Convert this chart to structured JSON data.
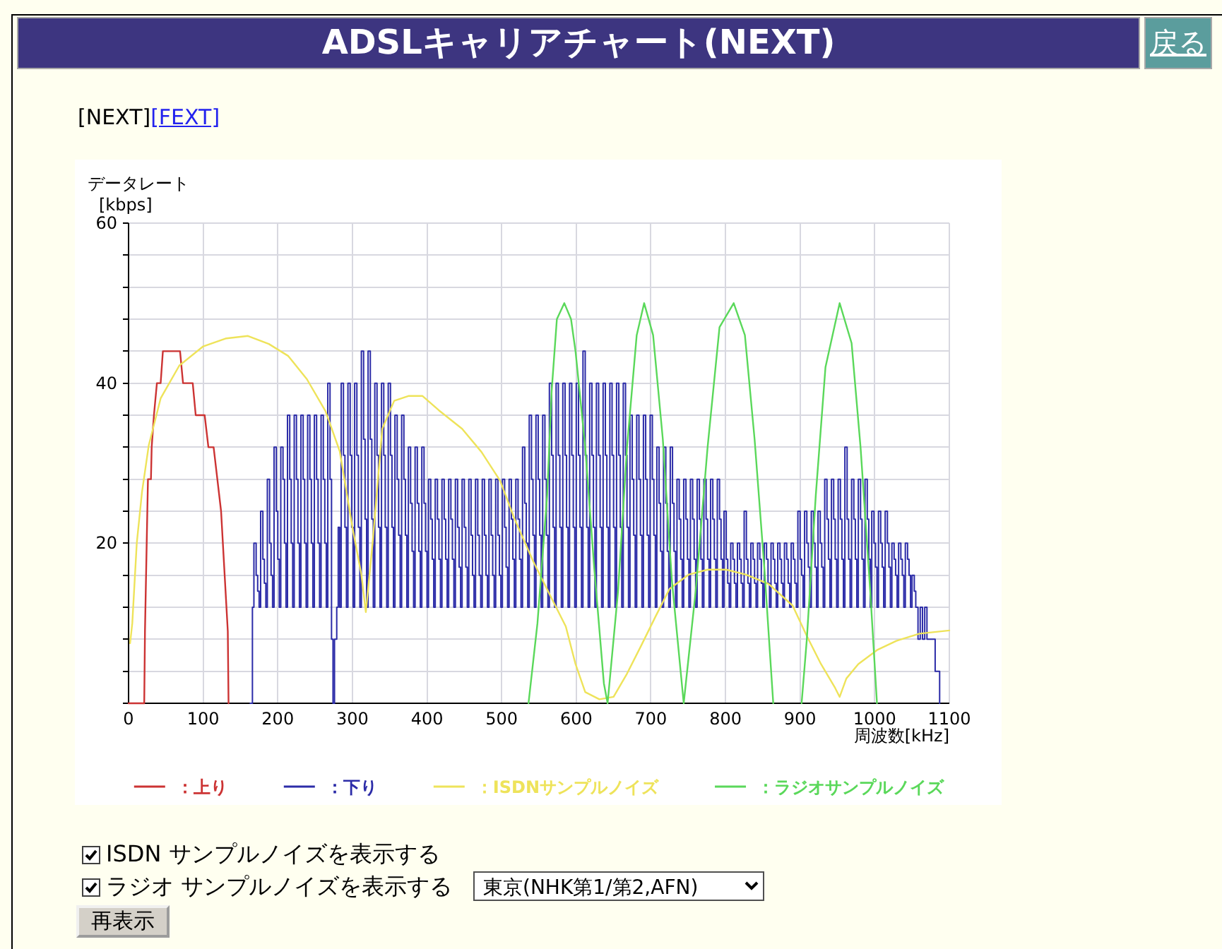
{
  "chart_data": {
    "type": "line",
    "title": "ADSLキャリアチャート(NEXT)",
    "xlabel": "周波数[kHz]",
    "ylabel": "データレート\n[kbps]",
    "xlim": [
      0,
      1100
    ],
    "xticks": [
      0,
      100,
      200,
      300,
      400,
      500,
      600,
      700,
      800,
      900,
      1000,
      1100
    ],
    "ylim": [
      0,
      60
    ],
    "yticks": [
      {
        "value": 0,
        "label": null
      },
      {
        "value": 4,
        "label": null
      },
      {
        "value": 8,
        "label": null
      },
      {
        "value": 12,
        "label": null
      },
      {
        "value": 16,
        "label": null
      },
      20,
      {
        "value": 24,
        "label": null
      },
      {
        "value": 28,
        "label": null
      },
      {
        "value": 32,
        "label": null
      },
      {
        "value": 36,
        "label": null
      },
      40,
      {
        "value": 44,
        "label": null
      },
      {
        "value": 48,
        "label": null
      },
      {
        "value": 52,
        "label": null
      },
      {
        "value": 56,
        "label": null
      },
      60
    ],
    "grid": true,
    "legend": "bottom",
    "series": [
      {
        "name": "：上り",
        "color": "#cc3333",
        "x": [
          0,
          21,
          22,
          26,
          30,
          31,
          34,
          38,
          43,
          46,
          69,
          73,
          86,
          90,
          102,
          107,
          114,
          119,
          124,
          133,
          134
        ],
        "values": [
          0,
          0,
          9,
          28,
          28,
          32,
          36,
          40,
          40,
          44,
          44,
          40,
          40,
          36,
          36,
          32,
          32,
          28,
          24,
          9,
          0
        ]
      },
      {
        "name": "：下り",
        "color": "#2c2ca8",
        "type": "step",
        "x": [
          163,
          166,
          168,
          171,
          173,
          175,
          177,
          180,
          182,
          184,
          186,
          189,
          191,
          193,
          195,
          198,
          200,
          202,
          204,
          207,
          209,
          211,
          213,
          216,
          218,
          220,
          222,
          225,
          227,
          229,
          231,
          234,
          236,
          238,
          240,
          243,
          245,
          247,
          249,
          252,
          254,
          256,
          258,
          261,
          263,
          265,
          267,
          270,
          272,
          274,
          276,
          279,
          281,
          283,
          285,
          288,
          290,
          292,
          294,
          297,
          299,
          301,
          303,
          306,
          308,
          310,
          312,
          315,
          317,
          319,
          321,
          324,
          326,
          328,
          330,
          333,
          335,
          337,
          339,
          342,
          344,
          346,
          348,
          351,
          353,
          355,
          357,
          360,
          362,
          364,
          366,
          369,
          371,
          373,
          375,
          378,
          380,
          382,
          384,
          387,
          389,
          391,
          393,
          396,
          398,
          400,
          402,
          405,
          407,
          409,
          411,
          414,
          416,
          418,
          420,
          423,
          425,
          427,
          429,
          432,
          434,
          436,
          438,
          441,
          443,
          445,
          447,
          450,
          452,
          454,
          456,
          459,
          461,
          463,
          465,
          468,
          470,
          472,
          474,
          477,
          479,
          481,
          483,
          486,
          488,
          490,
          492,
          495,
          497,
          499,
          501,
          504,
          506,
          508,
          510,
          513,
          515,
          517,
          519,
          522,
          524,
          526,
          528,
          531,
          533,
          535,
          537,
          540,
          542,
          544,
          546,
          549,
          551,
          553,
          555,
          558,
          560,
          562,
          564,
          567,
          569,
          571,
          573,
          576,
          578,
          580,
          582,
          585,
          587,
          589,
          591,
          594,
          596,
          598,
          600,
          603,
          605,
          607,
          609,
          612,
          614,
          616,
          618,
          621,
          623,
          625,
          627,
          630,
          632,
          634,
          636,
          639,
          641,
          643,
          645,
          648,
          650,
          652,
          654,
          657,
          659,
          661,
          663,
          666,
          668,
          670,
          672,
          675,
          677,
          679,
          681,
          684,
          686,
          688,
          690,
          693,
          695,
          697,
          699,
          702,
          704,
          706,
          708,
          711,
          713,
          715,
          717,
          720,
          722,
          724,
          726,
          729,
          731,
          733,
          735,
          738,
          740,
          742,
          744,
          747,
          749,
          751,
          753,
          756,
          758,
          760,
          762,
          765,
          767,
          769,
          771,
          774,
          776,
          778,
          780,
          783,
          785,
          787,
          789,
          792,
          794,
          796,
          798,
          801,
          803,
          805,
          807,
          810,
          812,
          814,
          816,
          819,
          821,
          823,
          825,
          828,
          830,
          832,
          834,
          837,
          839,
          841,
          843,
          846,
          848,
          850,
          852,
          855,
          857,
          859,
          861,
          864,
          866,
          868,
          870,
          873,
          875,
          877,
          879,
          882,
          884,
          886,
          888,
          891,
          893,
          895,
          897,
          900,
          902,
          904,
          906,
          909,
          911,
          913,
          915,
          918,
          920,
          922,
          924,
          927,
          929,
          931,
          933,
          936,
          938,
          940,
          942,
          945,
          947,
          949,
          951,
          954,
          956,
          958,
          960,
          963,
          965,
          967,
          969,
          972,
          974,
          976,
          978,
          981,
          983,
          985,
          987,
          990,
          992,
          994,
          996,
          999,
          1001,
          1003,
          1005,
          1008,
          1010,
          1012,
          1014,
          1017,
          1019,
          1021,
          1023,
          1026,
          1028,
          1030,
          1032,
          1035,
          1037,
          1039,
          1041,
          1044,
          1046,
          1048,
          1050,
          1053,
          1055,
          1058,
          1061,
          1064,
          1067,
          1070,
          1076,
          1081,
          1087
        ],
        "values": [
          0,
          12,
          20,
          16,
          14,
          12,
          24,
          18,
          15,
          12,
          28,
          20,
          16,
          12,
          32,
          24,
          18,
          12,
          32,
          28,
          20,
          12,
          36,
          28,
          20,
          12,
          36,
          28,
          20,
          12,
          36,
          28,
          20,
          12,
          36,
          28,
          20,
          12,
          36,
          28,
          20,
          12,
          36,
          28,
          20,
          12,
          40,
          28,
          8,
          0,
          8,
          12,
          22,
          12,
          40,
          31,
          22,
          12,
          40,
          31,
          22,
          12,
          40,
          31,
          22,
          12,
          44,
          33,
          23,
          12,
          44,
          33,
          23,
          12,
          40,
          31,
          22,
          12,
          40,
          31,
          22,
          12,
          40,
          31,
          22,
          12,
          36,
          28,
          21,
          12,
          36,
          28,
          21,
          12,
          32,
          25,
          19,
          12,
          32,
          25,
          19,
          12,
          32,
          25,
          19,
          12,
          28,
          23,
          18,
          12,
          28,
          23,
          18,
          12,
          28,
          23,
          18,
          12,
          28,
          23,
          18,
          12,
          28,
          22,
          17,
          12,
          28,
          22,
          17,
          12,
          28,
          21,
          16,
          12,
          28,
          21,
          16,
          12,
          28,
          21,
          16,
          12,
          28,
          21,
          16,
          12,
          28,
          21,
          16,
          12,
          28,
          22,
          17,
          12,
          28,
          23,
          18,
          12,
          28,
          23,
          18,
          12,
          32,
          25,
          20,
          12,
          36,
          28,
          21,
          12,
          36,
          28,
          21,
          12,
          36,
          28,
          21,
          12,
          40,
          31,
          22,
          12,
          40,
          31,
          22,
          12,
          40,
          31,
          22,
          12,
          40,
          31,
          22,
          12,
          40,
          31,
          22,
          12,
          44,
          31,
          22,
          12,
          40,
          31,
          22,
          12,
          40,
          31,
          22,
          12,
          40,
          31,
          22,
          12,
          40,
          31,
          22,
          12,
          40,
          31,
          22,
          12,
          40,
          31,
          22,
          12,
          36,
          28,
          21,
          12,
          36,
          28,
          21,
          12,
          36,
          28,
          21,
          12,
          36,
          28,
          21,
          12,
          32,
          25,
          19,
          12,
          32,
          25,
          19,
          12,
          32,
          25,
          19,
          12,
          28,
          23,
          18,
          12,
          28,
          23,
          18,
          12,
          28,
          23,
          18,
          12,
          28,
          23,
          18,
          12,
          28,
          23,
          18,
          12,
          28,
          23,
          18,
          12,
          28,
          23,
          18,
          12,
          24,
          18,
          15,
          12,
          20,
          18,
          15,
          12,
          20,
          18,
          15,
          12,
          24,
          18,
          15,
          12,
          20,
          18,
          15,
          12,
          20,
          18,
          15,
          12,
          20,
          18,
          15,
          12,
          20,
          18,
          15,
          12,
          20,
          18,
          15,
          12,
          20,
          18,
          15,
          12,
          20,
          18,
          15,
          12,
          24,
          18,
          16,
          12,
          24,
          20,
          17,
          12,
          24,
          20,
          17,
          12,
          24,
          20,
          17,
          12,
          28,
          23,
          18,
          12,
          28,
          23,
          18,
          12,
          28,
          23,
          18,
          12,
          32,
          23,
          18,
          12,
          28,
          23,
          18,
          12,
          28,
          23,
          18,
          12,
          28,
          23,
          18,
          12,
          24,
          20,
          17,
          12,
          24,
          20,
          17,
          12,
          24,
          20,
          17,
          12,
          20,
          18,
          16,
          12,
          20,
          18,
          16,
          12,
          20,
          18,
          16,
          12,
          16,
          14,
          12,
          8,
          12,
          8,
          12,
          8,
          8,
          4,
          0
        ]
      },
      {
        "name": "：ISDNサンプルノイズ",
        "color": "#eee35a",
        "x": [
          2,
          5,
          11,
          18,
          27,
          43,
          68,
          100,
          131,
          160,
          188,
          214,
          239,
          264,
          283,
          300,
          312,
          318,
          327,
          340,
          356,
          375,
          394,
          416,
          447,
          473,
          498,
          517,
          542,
          567,
          586,
          599,
          612,
          631,
          650,
          668,
          687,
          706,
          725,
          751,
          776,
          801,
          827,
          858,
          890,
          909,
          928,
          947,
          953,
          962,
          978,
          1004,
          1029,
          1060,
          1100
        ],
        "values": [
          7.5,
          10,
          20,
          26.4,
          32.2,
          38.1,
          42.2,
          44.6,
          45.6,
          45.9,
          44.9,
          43.4,
          40.5,
          36.5,
          31.5,
          22,
          16.1,
          11.4,
          20,
          34.3,
          37.8,
          38.4,
          38.4,
          36.6,
          34.3,
          31.4,
          27.8,
          23.1,
          17.8,
          13.1,
          9.6,
          4.9,
          1.4,
          0.5,
          0.8,
          3.7,
          7.2,
          10.8,
          14.3,
          16.1,
          16.7,
          16.7,
          16.1,
          14.9,
          12.2,
          8.4,
          4.9,
          1.9,
          0.8,
          3.1,
          4.9,
          6.7,
          7.8,
          8.7,
          9.1
        ]
      },
      {
        "name": "：ラジオサンプルノイズ",
        "color": "#5ad85a",
        "x": [
          536,
          548,
          561,
          567,
          574,
          584,
          593,
          599,
          612,
          624,
          637,
          642,
          656,
          668,
          681,
          691,
          703,
          716,
          728,
          744,
          760,
          776,
          792,
          811,
          826,
          839,
          852,
          864,
          null,
          902,
          909,
          921,
          934,
          953,
          969,
          981,
          994,
          1003
        ],
        "values": [
          0,
          10,
          26,
          39,
          48,
          50,
          48,
          44,
          32,
          17,
          2.5,
          0,
          14,
          32,
          46,
          50,
          46,
          33,
          15.5,
          0,
          14,
          32,
          47,
          50,
          46,
          33,
          17,
          0,
          null,
          0,
          8,
          26,
          42,
          50,
          45,
          32,
          14,
          0
        ]
      }
    ],
    "annotations": [
      "戻る",
      "[NEXT]",
      "[FEXT]",
      "ISDN サンプルノイズを表示する",
      "ラジオ サンプルノイズを表示する",
      "東京(NHK第1/第2,AFN)",
      "再表示"
    ]
  }
}
